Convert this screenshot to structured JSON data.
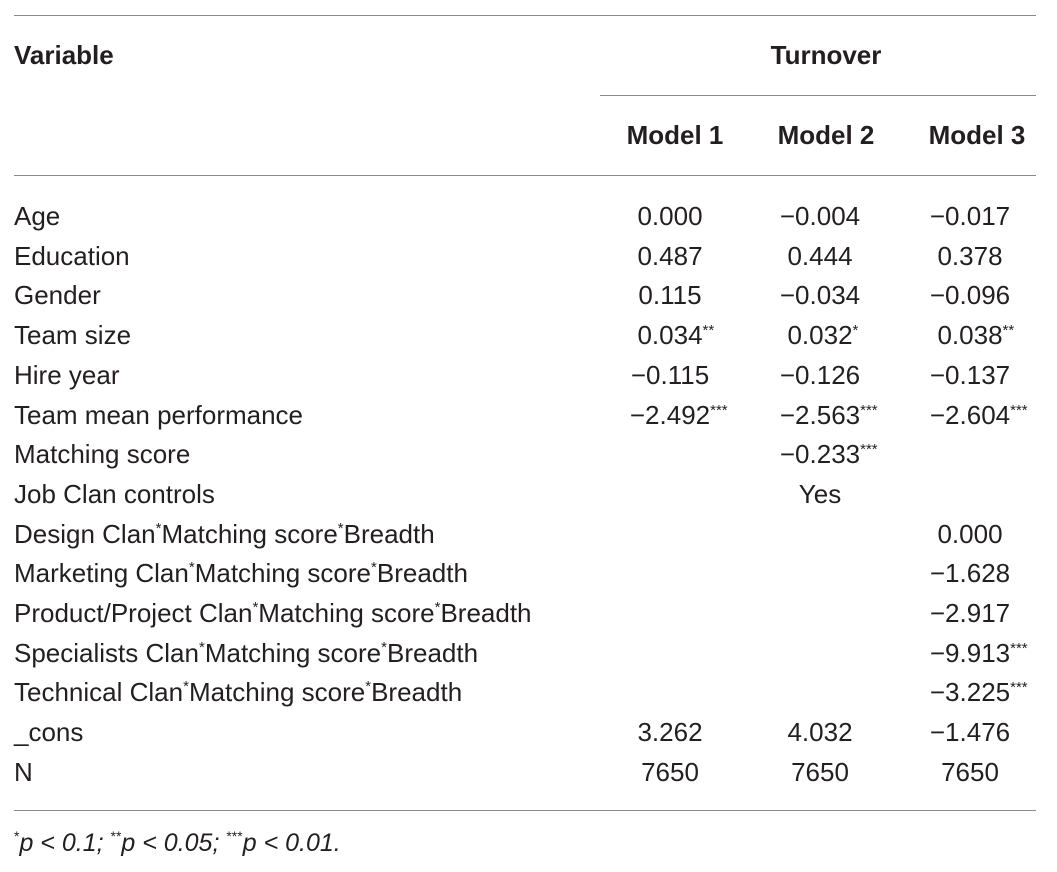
{
  "header": {
    "variable": "Variable",
    "group": "Turnover",
    "models": [
      "Model 1",
      "Model 2",
      "Model 3"
    ]
  },
  "rows": [
    {
      "label": "Age",
      "cells": [
        {
          "v": "0.000",
          "s": ""
        },
        {
          "v": "−0.004",
          "s": ""
        },
        {
          "v": "−0.017",
          "s": ""
        }
      ]
    },
    {
      "label": "Education",
      "cells": [
        {
          "v": "0.487",
          "s": ""
        },
        {
          "v": "0.444",
          "s": ""
        },
        {
          "v": "0.378",
          "s": ""
        }
      ]
    },
    {
      "label": "Gender",
      "cells": [
        {
          "v": "0.115",
          "s": ""
        },
        {
          "v": "−0.034",
          "s": ""
        },
        {
          "v": "−0.096",
          "s": ""
        }
      ]
    },
    {
      "label": "Team size",
      "cells": [
        {
          "v": "0.034",
          "s": "**"
        },
        {
          "v": "0.032",
          "s": "*"
        },
        {
          "v": "0.038",
          "s": "**"
        }
      ]
    },
    {
      "label": "Hire year",
      "cells": [
        {
          "v": "−0.115",
          "s": ""
        },
        {
          "v": "−0.126",
          "s": ""
        },
        {
          "v": "−0.137",
          "s": ""
        }
      ]
    },
    {
      "label": "Team mean performance",
      "cells": [
        {
          "v": "−2.492",
          "s": "***"
        },
        {
          "v": "−2.563",
          "s": "***"
        },
        {
          "v": "−2.604",
          "s": "***"
        }
      ]
    },
    {
      "label": "Matching score",
      "cells": [
        {
          "v": "",
          "s": ""
        },
        {
          "v": "−0.233",
          "s": "***"
        },
        {
          "v": "",
          "s": ""
        }
      ]
    },
    {
      "label": "Job Clan controls",
      "cells": [
        {
          "v": "",
          "s": ""
        },
        {
          "v": "Yes",
          "s": ""
        },
        {
          "v": "",
          "s": ""
        }
      ]
    },
    {
      "label": [
        {
          "t": "Design Clan"
        },
        {
          "sup": "*"
        },
        {
          "t": "Matching score"
        },
        {
          "sup": "*"
        },
        {
          "t": "Breadth"
        }
      ],
      "cells": [
        {
          "v": "",
          "s": ""
        },
        {
          "v": "",
          "s": ""
        },
        {
          "v": "0.000",
          "s": ""
        }
      ]
    },
    {
      "label": [
        {
          "t": "Marketing Clan"
        },
        {
          "sup": "*"
        },
        {
          "t": "Matching score"
        },
        {
          "sup": "*"
        },
        {
          "t": "Breadth"
        }
      ],
      "cells": [
        {
          "v": "",
          "s": ""
        },
        {
          "v": "",
          "s": ""
        },
        {
          "v": "−1.628",
          "s": ""
        }
      ]
    },
    {
      "label": [
        {
          "t": "Product/Project Clan"
        },
        {
          "sup": "*"
        },
        {
          "t": "Matching score"
        },
        {
          "sup": "*"
        },
        {
          "t": "Breadth"
        }
      ],
      "cells": [
        {
          "v": "",
          "s": ""
        },
        {
          "v": "",
          "s": ""
        },
        {
          "v": "−2.917",
          "s": ""
        }
      ]
    },
    {
      "label": [
        {
          "t": "Specialists Clan"
        },
        {
          "sup": "*"
        },
        {
          "t": "Matching score"
        },
        {
          "sup": "*"
        },
        {
          "t": "Breadth"
        }
      ],
      "cells": [
        {
          "v": "",
          "s": ""
        },
        {
          "v": "",
          "s": ""
        },
        {
          "v": "−9.913",
          "s": "***"
        }
      ]
    },
    {
      "label": [
        {
          "t": "Technical Clan"
        },
        {
          "sup": "*"
        },
        {
          "t": "Matching score"
        },
        {
          "sup": "*"
        },
        {
          "t": "Breadth"
        }
      ],
      "cells": [
        {
          "v": "",
          "s": ""
        },
        {
          "v": "",
          "s": ""
        },
        {
          "v": "−3.225",
          "s": "***"
        }
      ]
    },
    {
      "label": "_cons",
      "cells": [
        {
          "v": "3.262",
          "s": ""
        },
        {
          "v": "4.032",
          "s": ""
        },
        {
          "v": "−1.476",
          "s": ""
        }
      ]
    },
    {
      "label": "N",
      "cells": [
        {
          "v": "7650",
          "s": ""
        },
        {
          "v": "7650",
          "s": ""
        },
        {
          "v": "7650",
          "s": ""
        }
      ]
    }
  ],
  "footnote": [
    {
      "sup": "*"
    },
    {
      "t": "p < 0.1; "
    },
    {
      "sup": "**"
    },
    {
      "t": "p < 0.05; "
    },
    {
      "sup": "***"
    },
    {
      "t": "p < 0.01."
    }
  ]
}
